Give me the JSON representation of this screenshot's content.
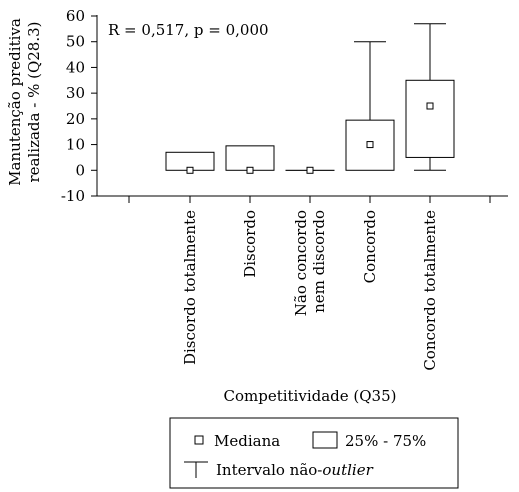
{
  "chart_data": {
    "type": "box",
    "annotation": "R = 0,517, p = 0,000",
    "xlabel": "Competitividade (Q35)",
    "ylabel": [
      "Manutenção preditiva",
      "realizada - % (Q28.3)"
    ],
    "ylim": [
      -10,
      60
    ],
    "yticks": [
      -10,
      0,
      10,
      20,
      30,
      40,
      50,
      60
    ],
    "categories": [
      [
        "Discordo totalmente"
      ],
      [
        "Discordo"
      ],
      [
        "Não concordo",
        "nem discordo"
      ],
      [
        "Concordo"
      ],
      [
        "Concordo totalmente"
      ]
    ],
    "boxes": [
      {
        "median": 0,
        "q1": 0,
        "q3": 7,
        "whisker_low": null,
        "whisker_high": null
      },
      {
        "median": 0,
        "q1": 0,
        "q3": 9.5,
        "whisker_low": null,
        "whisker_high": null
      },
      {
        "median": 0,
        "q1": 0,
        "q3": 0,
        "whisker_low": null,
        "whisker_high": null
      },
      {
        "median": 10,
        "q1": 0,
        "q3": 19.5,
        "whisker_low": 0,
        "whisker_high": 50
      },
      {
        "median": 25,
        "q1": 5,
        "q3": 35,
        "whisker_low": 0,
        "whisker_high": 57
      }
    ],
    "legend": {
      "median_label": "Mediana",
      "box_label": "25% - 75%",
      "whisker_label_prefix": "Intervalo não-",
      "whisker_label_italic": "outlier"
    }
  }
}
